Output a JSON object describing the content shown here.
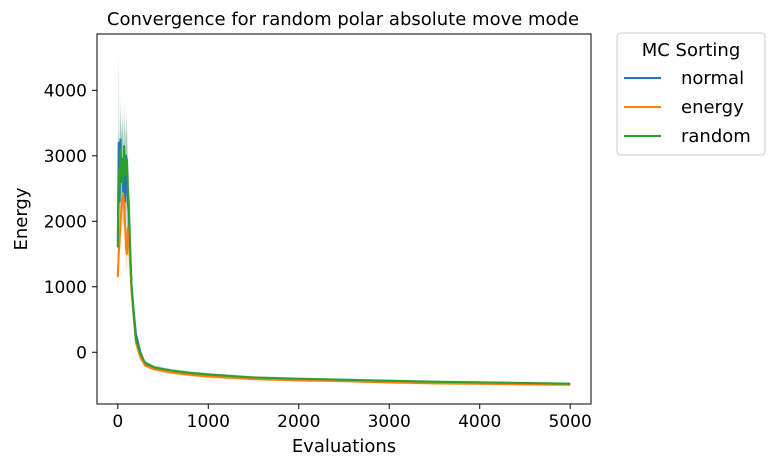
{
  "chart_data": {
    "type": "line",
    "title": "Convergence for random polar absolute move mode",
    "xlabel": "Evaluations",
    "ylabel": "Energy",
    "xlim": [
      -230,
      5230
    ],
    "ylim": [
      -790,
      4860
    ],
    "xticks": [
      0,
      1000,
      2000,
      3000,
      4000,
      5000
    ],
    "yticks": [
      0,
      1000,
      2000,
      3000,
      4000
    ],
    "legend": {
      "title": "MC Sorting",
      "position": "outside-top-right"
    },
    "grid": false,
    "series": [
      {
        "name": "normal",
        "color": "#1f77b4",
        "x": [
          0,
          10,
          20,
          30,
          40,
          50,
          60,
          70,
          80,
          90,
          100,
          110,
          120,
          130,
          140,
          150,
          175,
          200,
          250,
          300,
          400,
          600,
          800,
          1000,
          1500,
          2000,
          2500,
          3000,
          3500,
          4000,
          4500,
          5000
        ],
        "y": [
          1700,
          3200,
          2300,
          3250,
          2600,
          2950,
          2450,
          2850,
          2300,
          3000,
          2550,
          2300,
          2150,
          1800,
          1400,
          1050,
          650,
          280,
          0,
          -170,
          -240,
          -290,
          -320,
          -345,
          -390,
          -410,
          -425,
          -440,
          -455,
          -465,
          -475,
          -485
        ],
        "lower": [
          1300,
          2000,
          1700,
          2300,
          2000,
          2200,
          1900,
          2100,
          1800,
          2200,
          1900,
          1700,
          1600,
          1350,
          1050,
          800,
          500,
          200,
          -40,
          -200,
          -270,
          -315,
          -345,
          -370,
          -410,
          -430,
          -445,
          -460,
          -475,
          -485,
          -495,
          -505
        ],
        "upper": [
          2100,
          4600,
          3000,
          3900,
          3200,
          3700,
          3000,
          3600,
          2800,
          3700,
          3200,
          2900,
          2700,
          2250,
          1750,
          1300,
          800,
          360,
          40,
          -140,
          -210,
          -265,
          -295,
          -320,
          -370,
          -390,
          -405,
          -420,
          -435,
          -445,
          -455,
          -465
        ]
      },
      {
        "name": "energy",
        "color": "#ff7f0e",
        "x": [
          0,
          10,
          20,
          30,
          40,
          50,
          60,
          70,
          80,
          90,
          100,
          110,
          120,
          130,
          140,
          150,
          175,
          200,
          250,
          300,
          400,
          600,
          800,
          1000,
          1500,
          2000,
          2500,
          3000,
          3500,
          4000,
          4500,
          5000
        ],
        "y": [
          1150,
          1500,
          1700,
          2000,
          2200,
          2350,
          2400,
          2300,
          2000,
          1600,
          1500,
          1900,
          1700,
          1500,
          1250,
          950,
          550,
          150,
          -80,
          -200,
          -260,
          -310,
          -345,
          -370,
          -410,
          -430,
          -440,
          -460,
          -475,
          -480,
          -490,
          -495
        ],
        "lower": [
          900,
          1200,
          1400,
          1650,
          1800,
          1950,
          2000,
          1900,
          1650,
          1300,
          1250,
          1550,
          1400,
          1250,
          1050,
          780,
          450,
          100,
          -110,
          -225,
          -285,
          -335,
          -370,
          -395,
          -430,
          -450,
          -460,
          -480,
          -495,
          -500,
          -510,
          -515
        ],
        "upper": [
          1400,
          1800,
          2000,
          2400,
          2600,
          2800,
          2900,
          2800,
          2450,
          1950,
          1850,
          2350,
          2100,
          1800,
          1500,
          1150,
          650,
          200,
          -50,
          -175,
          -235,
          -285,
          -320,
          -345,
          -390,
          -410,
          -420,
          -440,
          -455,
          -460,
          -470,
          -475
        ]
      },
      {
        "name": "random",
        "color": "#2ca02c",
        "x": [
          0,
          10,
          20,
          30,
          40,
          50,
          60,
          70,
          80,
          90,
          100,
          110,
          120,
          130,
          140,
          150,
          175,
          200,
          250,
          300,
          400,
          600,
          800,
          1000,
          1500,
          2000,
          2500,
          3000,
          3500,
          4000,
          4500,
          5000
        ],
        "y": [
          1600,
          2800,
          2500,
          3100,
          2700,
          2900,
          2600,
          3150,
          2800,
          2700,
          2950,
          2500,
          2300,
          1900,
          1450,
          1050,
          600,
          200,
          -20,
          -160,
          -230,
          -280,
          -315,
          -340,
          -385,
          -405,
          -420,
          -435,
          -450,
          -460,
          -470,
          -480
        ],
        "lower": [
          1300,
          2300,
          2000,
          2500,
          2200,
          2300,
          2100,
          2500,
          2200,
          2150,
          2300,
          1950,
          1800,
          1500,
          1150,
          850,
          480,
          140,
          -60,
          -190,
          -260,
          -305,
          -340,
          -365,
          -405,
          -425,
          -440,
          -455,
          -470,
          -480,
          -490,
          -500
        ],
        "upper": [
          2000,
          3400,
          3100,
          3700,
          3300,
          3600,
          3200,
          3800,
          3400,
          3300,
          3600,
          3100,
          2800,
          2300,
          1750,
          1250,
          720,
          260,
          20,
          -130,
          -200,
          -255,
          -290,
          -315,
          -365,
          -385,
          -400,
          -415,
          -430,
          -440,
          -450,
          -460
        ]
      }
    ]
  }
}
